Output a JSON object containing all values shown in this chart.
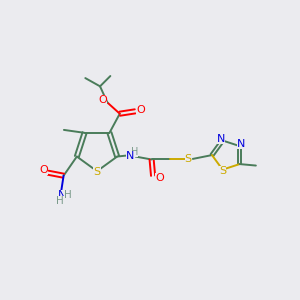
{
  "bg_color": "#ebebef",
  "bond_color": "#4a7c5a",
  "atom_colors": {
    "O": "#ff0000",
    "N": "#0000dd",
    "S": "#ccaa00",
    "H": "#7a9a8a",
    "C": "#4a7c5a"
  },
  "figsize": [
    3.0,
    3.0
  ],
  "dpi": 100
}
